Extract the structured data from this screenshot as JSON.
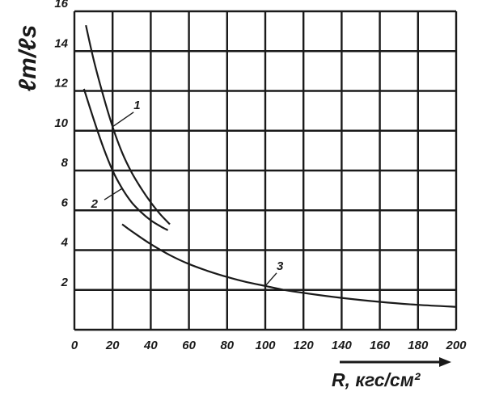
{
  "chart_data": {
    "type": "line",
    "xlabel": "R, кгс/см²",
    "ylabel": "ℓm/ℓs",
    "xlim": [
      0,
      200
    ],
    "ylim": [
      0,
      16
    ],
    "x_ticks": [
      "0",
      "20",
      "40",
      "60",
      "80",
      "100",
      "120",
      "140",
      "160",
      "180",
      "200"
    ],
    "y_ticks": [
      "2",
      "4",
      "6",
      "8",
      "10",
      "12",
      "14",
      "16"
    ],
    "grid": true,
    "series": [
      {
        "name": "1",
        "x": [
          6,
          10,
          15,
          20,
          25,
          30,
          35,
          40,
          45,
          50
        ],
        "y": [
          15.3,
          13.6,
          11.8,
          10.2,
          8.9,
          7.9,
          7.1,
          6.4,
          5.8,
          5.3
        ]
      },
      {
        "name": "2",
        "x": [
          5,
          10,
          15,
          20,
          25,
          30,
          35,
          40,
          45,
          49
        ],
        "y": [
          12.1,
          10.6,
          9.2,
          8.0,
          7.1,
          6.4,
          5.9,
          5.5,
          5.2,
          5.0
        ]
      },
      {
        "name": "3",
        "x": [
          25,
          30,
          40,
          50,
          60,
          70,
          80,
          90,
          100,
          110,
          120,
          140,
          160,
          180,
          200
        ],
        "y": [
          5.3,
          4.95,
          4.3,
          3.75,
          3.3,
          2.95,
          2.65,
          2.4,
          2.2,
          2.0,
          1.85,
          1.6,
          1.4,
          1.25,
          1.15
        ]
      }
    ]
  }
}
